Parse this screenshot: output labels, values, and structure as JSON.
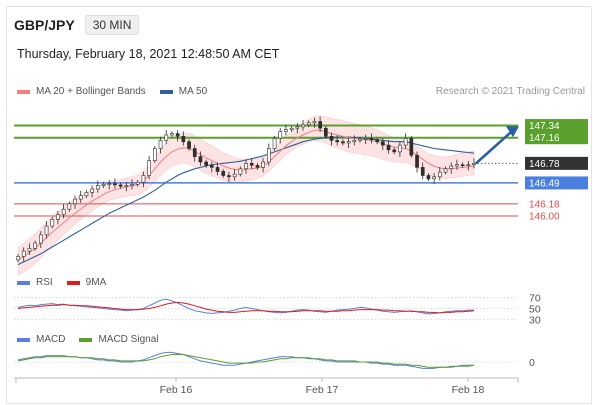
{
  "header": {
    "symbol": "GBP/JPY",
    "timeframe": "30 MIN",
    "datetime": "Thursday, February 18, 2021 12:48:50 AM CET",
    "credit": "Research © 2021 Trading Central"
  },
  "legend_main": [
    {
      "label": "MA 20 + Bollinger Bands",
      "color": "#f08080"
    },
    {
      "label": "MA 50",
      "color": "#2c5fa0"
    }
  ],
  "legend_rsi": [
    {
      "label": "RSI",
      "color": "#5b7fd6"
    },
    {
      "label": "9MA",
      "color": "#dd1c1c"
    }
  ],
  "legend_macd": [
    {
      "label": "MACD",
      "color": "#5b7fd6"
    },
    {
      "label": "MACD Signal",
      "color": "#5aa02c"
    }
  ],
  "colors": {
    "resistance": "#5aa02c",
    "pivot": "#4a7fe0",
    "support": "#e24a4a",
    "current": "#333333",
    "arrow": "#2c5fa0",
    "candle_up": "#2e2e2e",
    "candle_down": "#2e2e2e",
    "band_fill": "#fde1e1"
  },
  "chart_data": [
    {
      "type": "candlestick",
      "title": "GBP/JPY 30 MIN",
      "x_ticks": [
        "Feb 16",
        "Feb 17",
        "Feb 18"
      ],
      "ylim": [
        145.2,
        147.6
      ],
      "levels": [
        {
          "value": 147.34,
          "label": "147.34",
          "kind": "resistance"
        },
        {
          "value": 147.16,
          "label": "147.16",
          "kind": "resistance"
        },
        {
          "value": 146.78,
          "label": "146.78",
          "kind": "current"
        },
        {
          "value": 146.49,
          "label": "146.49",
          "kind": "pivot"
        },
        {
          "value": 146.18,
          "label": "146.18",
          "kind": "support"
        },
        {
          "value": 146.0,
          "label": "146.00",
          "kind": "support"
        }
      ],
      "close": [
        145.4,
        145.48,
        145.52,
        145.6,
        145.72,
        145.85,
        145.95,
        146.02,
        146.1,
        146.18,
        146.25,
        146.3,
        146.35,
        146.4,
        146.45,
        146.47,
        146.48,
        146.46,
        146.44,
        146.45,
        146.47,
        146.5,
        146.6,
        146.82,
        147.0,
        147.12,
        147.2,
        147.22,
        147.18,
        147.1,
        147.0,
        146.88,
        146.8,
        146.75,
        146.72,
        146.66,
        146.6,
        146.58,
        146.62,
        146.7,
        146.78,
        146.75,
        146.72,
        146.8,
        147.0,
        147.15,
        147.25,
        147.28,
        147.3,
        147.32,
        147.35,
        147.38,
        147.4,
        147.3,
        147.18,
        147.12,
        147.1,
        147.08,
        147.1,
        147.12,
        147.14,
        147.15,
        147.13,
        147.1,
        147.05,
        146.98,
        146.95,
        147.05,
        147.15,
        146.9,
        146.72,
        146.6,
        146.55,
        146.58,
        146.65,
        146.7,
        146.74,
        146.76,
        146.75,
        146.76,
        146.78
      ],
      "ma20": [
        145.35,
        145.4,
        145.46,
        145.52,
        145.6,
        145.68,
        145.76,
        145.83,
        145.9,
        145.97,
        146.04,
        146.1,
        146.16,
        146.22,
        146.27,
        146.32,
        146.36,
        146.39,
        146.41,
        146.43,
        146.45,
        146.47,
        146.52,
        146.6,
        146.7,
        146.8,
        146.88,
        146.95,
        146.99,
        147.01,
        147.0,
        146.96,
        146.91,
        146.86,
        146.82,
        146.78,
        146.74,
        146.71,
        146.69,
        146.68,
        146.69,
        146.7,
        146.71,
        146.74,
        146.8,
        146.88,
        146.96,
        147.04,
        147.1,
        147.16,
        147.2,
        147.24,
        147.27,
        147.27,
        147.25,
        147.22,
        147.2,
        147.18,
        147.16,
        147.15,
        147.14,
        147.13,
        147.12,
        147.1,
        147.07,
        147.04,
        147.02,
        147.01,
        147.0,
        146.96,
        146.9,
        146.84,
        146.78,
        146.74,
        146.71,
        146.7,
        146.7,
        146.71,
        146.72,
        146.73,
        146.74
      ],
      "ma50": [
        145.28,
        145.32,
        145.36,
        145.4,
        145.44,
        145.49,
        145.54,
        145.59,
        145.64,
        145.69,
        145.74,
        145.79,
        145.84,
        145.89,
        145.94,
        145.99,
        146.04,
        146.08,
        146.12,
        146.16,
        146.2,
        146.24,
        146.28,
        146.33,
        146.38,
        146.44,
        146.5,
        146.55,
        146.6,
        146.64,
        146.67,
        146.7,
        146.72,
        146.74,
        146.76,
        146.77,
        146.78,
        146.79,
        146.8,
        146.81,
        146.83,
        146.85,
        146.87,
        146.89,
        146.92,
        146.95,
        146.98,
        147.01,
        147.04,
        147.07,
        147.1,
        147.12,
        147.14,
        147.15,
        147.16,
        147.17,
        147.17,
        147.17,
        147.17,
        147.16,
        147.16,
        147.15,
        147.14,
        147.13,
        147.12,
        147.11,
        147.1,
        147.1,
        147.1,
        147.08,
        147.06,
        147.04,
        147.02,
        147.0,
        146.99,
        146.98,
        146.97,
        146.96,
        146.95,
        146.94,
        146.93
      ]
    },
    {
      "type": "line",
      "title": "RSI",
      "y_ticks": [
        "70",
        "50",
        "30"
      ],
      "ylim": [
        20,
        80
      ],
      "series": [
        {
          "name": "RSI",
          "values": [
            52,
            54,
            56,
            55,
            57,
            58,
            59,
            57,
            58,
            56,
            55,
            54,
            53,
            52,
            51,
            50,
            49,
            48,
            47,
            46,
            47,
            48,
            50,
            55,
            60,
            65,
            67,
            64,
            60,
            55,
            50,
            46,
            44,
            42,
            41,
            42,
            43,
            45,
            47,
            50,
            52,
            50,
            48,
            46,
            44,
            43,
            42,
            43,
            45,
            47,
            48,
            47,
            45,
            44,
            43,
            45,
            47,
            48,
            49,
            50,
            52,
            51,
            49,
            47,
            45,
            44,
            43,
            44,
            45,
            46,
            44,
            42,
            40,
            41,
            42,
            44,
            45,
            46,
            46,
            47,
            47
          ]
        },
        {
          "name": "9MA",
          "values": [
            50,
            51,
            52,
            53,
            54,
            55,
            56,
            56,
            57,
            56,
            56,
            55,
            55,
            54,
            53,
            52,
            51,
            50,
            49,
            48,
            48,
            48,
            49,
            50,
            52,
            55,
            58,
            60,
            61,
            60,
            58,
            55,
            52,
            49,
            47,
            45,
            44,
            43,
            43,
            44,
            45,
            46,
            46,
            46,
            45,
            45,
            44,
            44,
            44,
            45,
            46,
            46,
            46,
            46,
            45,
            45,
            45,
            46,
            46,
            47,
            48,
            48,
            48,
            48,
            47,
            47,
            46,
            46,
            45,
            45,
            44,
            44,
            43,
            43,
            42,
            43,
            43,
            44,
            44,
            45,
            46
          ]
        }
      ]
    },
    {
      "type": "line",
      "title": "MACD",
      "y_ticks": [
        "0"
      ],
      "ylim": [
        -0.15,
        0.15
      ],
      "series": [
        {
          "name": "MACD",
          "values": [
            0.02,
            0.03,
            0.04,
            0.05,
            0.05,
            0.06,
            0.06,
            0.06,
            0.06,
            0.05,
            0.05,
            0.04,
            0.04,
            0.03,
            0.02,
            0.02,
            0.01,
            0.01,
            0.0,
            0.0,
            0.0,
            0.01,
            0.02,
            0.04,
            0.06,
            0.08,
            0.09,
            0.09,
            0.08,
            0.07,
            0.05,
            0.03,
            0.01,
            0.0,
            -0.01,
            -0.02,
            -0.03,
            -0.03,
            -0.03,
            -0.02,
            -0.01,
            0.0,
            0.01,
            0.02,
            0.03,
            0.04,
            0.05,
            0.05,
            0.05,
            0.04,
            0.04,
            0.03,
            0.03,
            0.02,
            0.01,
            0.01,
            0.0,
            0.0,
            0.0,
            0.0,
            0.0,
            0.0,
            -0.01,
            -0.01,
            -0.02,
            -0.02,
            -0.03,
            -0.03,
            -0.03,
            -0.04,
            -0.05,
            -0.06,
            -0.06,
            -0.06,
            -0.05,
            -0.05,
            -0.04,
            -0.04,
            -0.03,
            -0.03,
            -0.03
          ]
        },
        {
          "name": "MACD Signal",
          "values": [
            0.01,
            0.02,
            0.03,
            0.04,
            0.04,
            0.05,
            0.05,
            0.05,
            0.05,
            0.05,
            0.05,
            0.04,
            0.04,
            0.04,
            0.03,
            0.03,
            0.02,
            0.02,
            0.01,
            0.01,
            0.01,
            0.01,
            0.01,
            0.02,
            0.03,
            0.05,
            0.06,
            0.07,
            0.07,
            0.07,
            0.06,
            0.05,
            0.04,
            0.03,
            0.02,
            0.01,
            0.0,
            -0.01,
            -0.01,
            -0.01,
            -0.01,
            -0.01,
            0.0,
            0.0,
            0.01,
            0.02,
            0.03,
            0.03,
            0.04,
            0.04,
            0.04,
            0.04,
            0.03,
            0.03,
            0.02,
            0.02,
            0.01,
            0.01,
            0.01,
            0.01,
            0.0,
            0.0,
            0.0,
            0.0,
            -0.01,
            -0.01,
            -0.02,
            -0.02,
            -0.02,
            -0.03,
            -0.03,
            -0.04,
            -0.05,
            -0.05,
            -0.05,
            -0.05,
            -0.05,
            -0.04,
            -0.04,
            -0.04,
            -0.03
          ]
        }
      ]
    }
  ]
}
